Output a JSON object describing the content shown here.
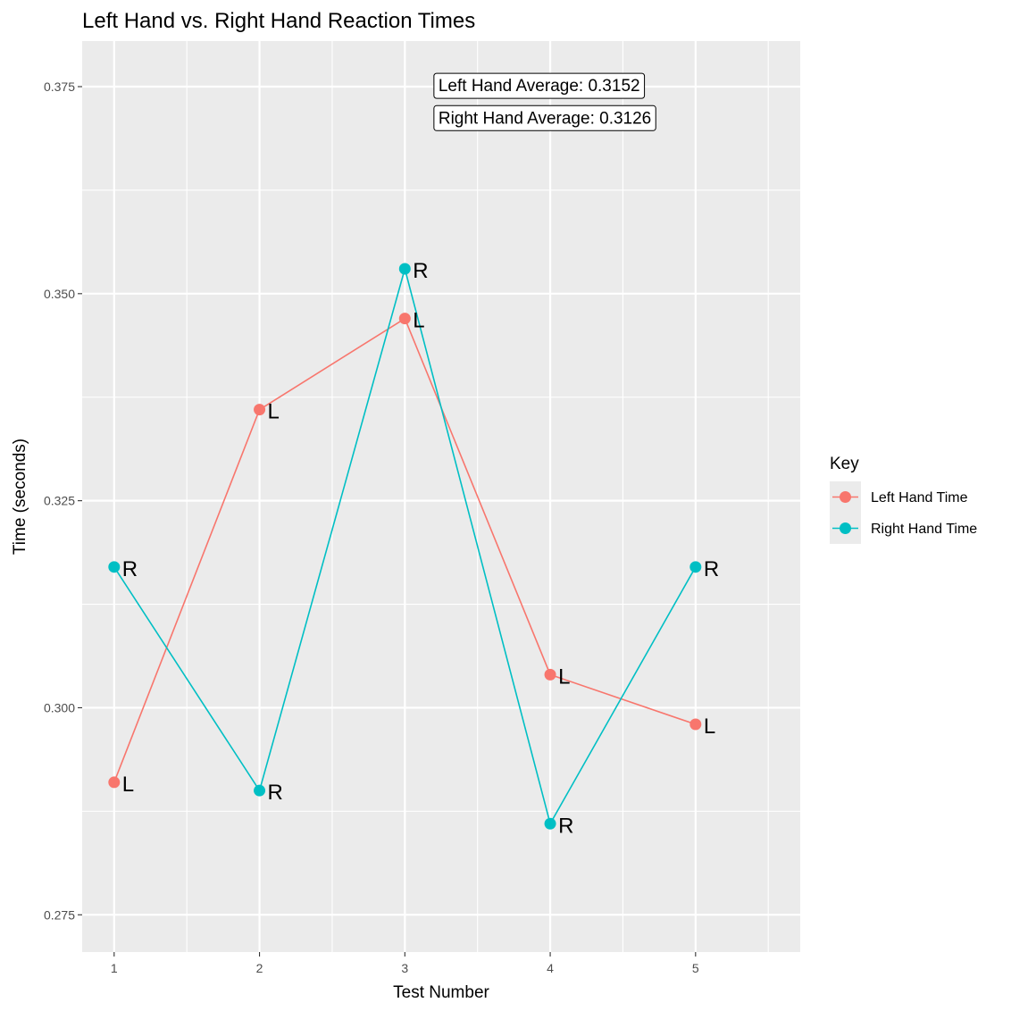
{
  "chart_data": {
    "type": "line",
    "title": "Left Hand vs. Right Hand Reaction Times",
    "xlabel": "Test Number",
    "ylabel": "Time (seconds)",
    "x": [
      1,
      2,
      3,
      4,
      5
    ],
    "x_tick_labels": [
      "1",
      "2",
      "3",
      "4",
      "5"
    ],
    "y_tick_labels": [
      "0.275",
      "0.300",
      "0.325",
      "0.350",
      "0.375"
    ],
    "y_ticks": [
      0.275,
      0.3,
      0.325,
      0.35,
      0.375
    ],
    "xlim": [
      0.78,
      5.72
    ],
    "ylim": [
      0.2705,
      0.3805
    ],
    "grid": true,
    "legend": {
      "title": "Key",
      "position": "right"
    },
    "series": [
      {
        "name": "Left Hand Time",
        "color": "#F8766D",
        "point_label": "L",
        "values": [
          0.291,
          0.336,
          0.347,
          0.304,
          0.298
        ]
      },
      {
        "name": "Right Hand Time",
        "color": "#00BFC4",
        "point_label": "R",
        "values": [
          0.317,
          0.29,
          0.353,
          0.286,
          0.317
        ]
      }
    ],
    "annotations": [
      {
        "text": "Left Hand Average: 0.3152",
        "x": 3.2,
        "y": 0.3752
      },
      {
        "text": "Right Hand Average: 0.3126",
        "x": 3.2,
        "y": 0.3713
      }
    ]
  }
}
